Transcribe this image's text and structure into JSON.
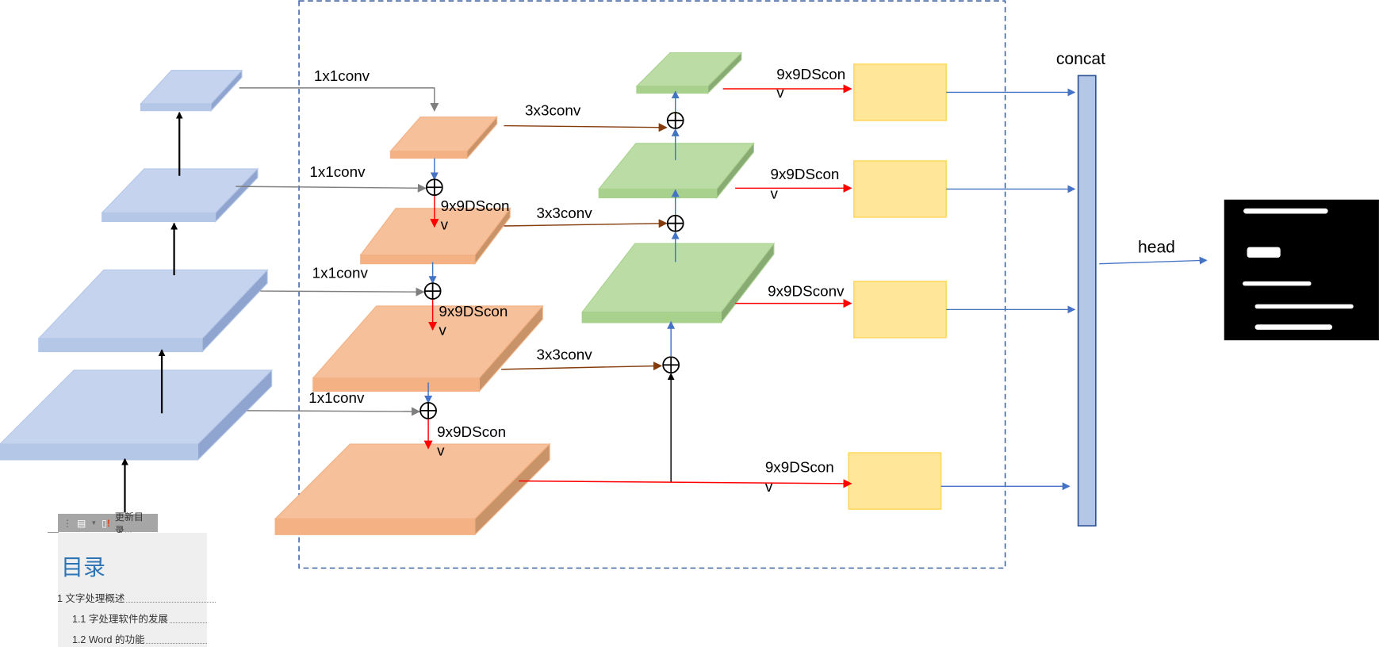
{
  "diagram": {
    "labels": {
      "conv1x1": "1x1conv",
      "conv3x3": "3x3conv",
      "dsconv_part1": "9x9DScon",
      "dsconv_part2": "v",
      "dsconv_full": "9x9DSconv",
      "concat": "concat",
      "head": "head"
    },
    "colors": {
      "backbone": "#b4c7e7",
      "top_down": "#f4b183",
      "bottom_up": "#a9d18e",
      "output": "#ffe699",
      "dashed_box": "#2f5597",
      "dsconv_arrow": "#ff0000",
      "conv3x3_arrow": "#843c0c"
    }
  },
  "toc_widget": {
    "toolbar": {
      "doc_icon": "document-icon",
      "dropdown_icon": "chevron-down-icon",
      "update_icon": "update-warning-icon",
      "update_label": "更新目录..."
    },
    "title": "目录",
    "entries": [
      {
        "text": "1  文字处理概述"
      },
      {
        "text": "1.1  字处理软件的发展"
      },
      {
        "text": "1.2 Word 的功能"
      }
    ]
  }
}
